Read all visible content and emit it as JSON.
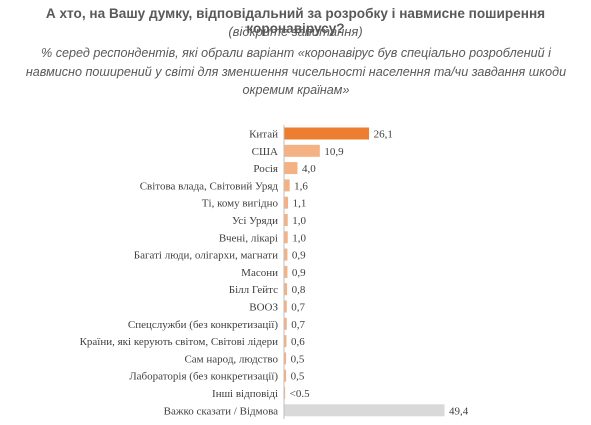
{
  "header": {
    "title": "А хто, на Вашу думку, відповідальний за розробку і навмисне поширення коронавірусу?",
    "subtitle": "(відкрите запитання)",
    "note": "% серед респондентів, які обрали варіант «коронавірус був спеціально розроблений і навмисно поширений у світі для зменшення чисельності населення та/чи завдання шкоди окремим країнам»"
  },
  "colors": {
    "highlight": "#ED7D31",
    "bar": "#F4B183",
    "neutral": "#D9D9D9",
    "axis": "#BFBFBF"
  },
  "chart_data": {
    "type": "bar",
    "orientation": "horizontal",
    "grid": false,
    "xlim": [
      0,
      50
    ],
    "categories": [
      "Китай",
      "США",
      "Росія",
      "Світова влада, Світовий Уряд",
      "Ті, кому вигідно",
      "Усі Уряди",
      "Вчені, лікарі",
      "Багаті люди, олігархи, магнати",
      "Масони",
      "Білл Гейтс",
      "ВООЗ",
      "Спецслужби (без конкретизації)",
      "Країни, які керують світом, Світові лідери",
      "Сам народ, людство",
      "Лабораторія (без конкретизації)",
      "Інші відповіді",
      "Важко сказати / Відмова"
    ],
    "values": [
      26.1,
      10.9,
      4.0,
      1.6,
      1.1,
      1.0,
      1.0,
      0.9,
      0.9,
      0.8,
      0.7,
      0.7,
      0.6,
      0.5,
      0.5,
      0.2,
      49.4
    ],
    "data_labels": [
      "26,1",
      "10,9",
      "4,0",
      "1,6",
      "1,1",
      "1,0",
      "1,0",
      "0,9",
      "0,9",
      "0,8",
      "0,7",
      "0,7",
      "0,6",
      "0,5",
      "0,5",
      "<0.5",
      "49,4"
    ],
    "bar_colors": [
      "highlight",
      "bar",
      "bar",
      "bar",
      "bar",
      "bar",
      "bar",
      "bar",
      "bar",
      "bar",
      "bar",
      "bar",
      "bar",
      "bar",
      "bar",
      "bar",
      "neutral"
    ]
  }
}
